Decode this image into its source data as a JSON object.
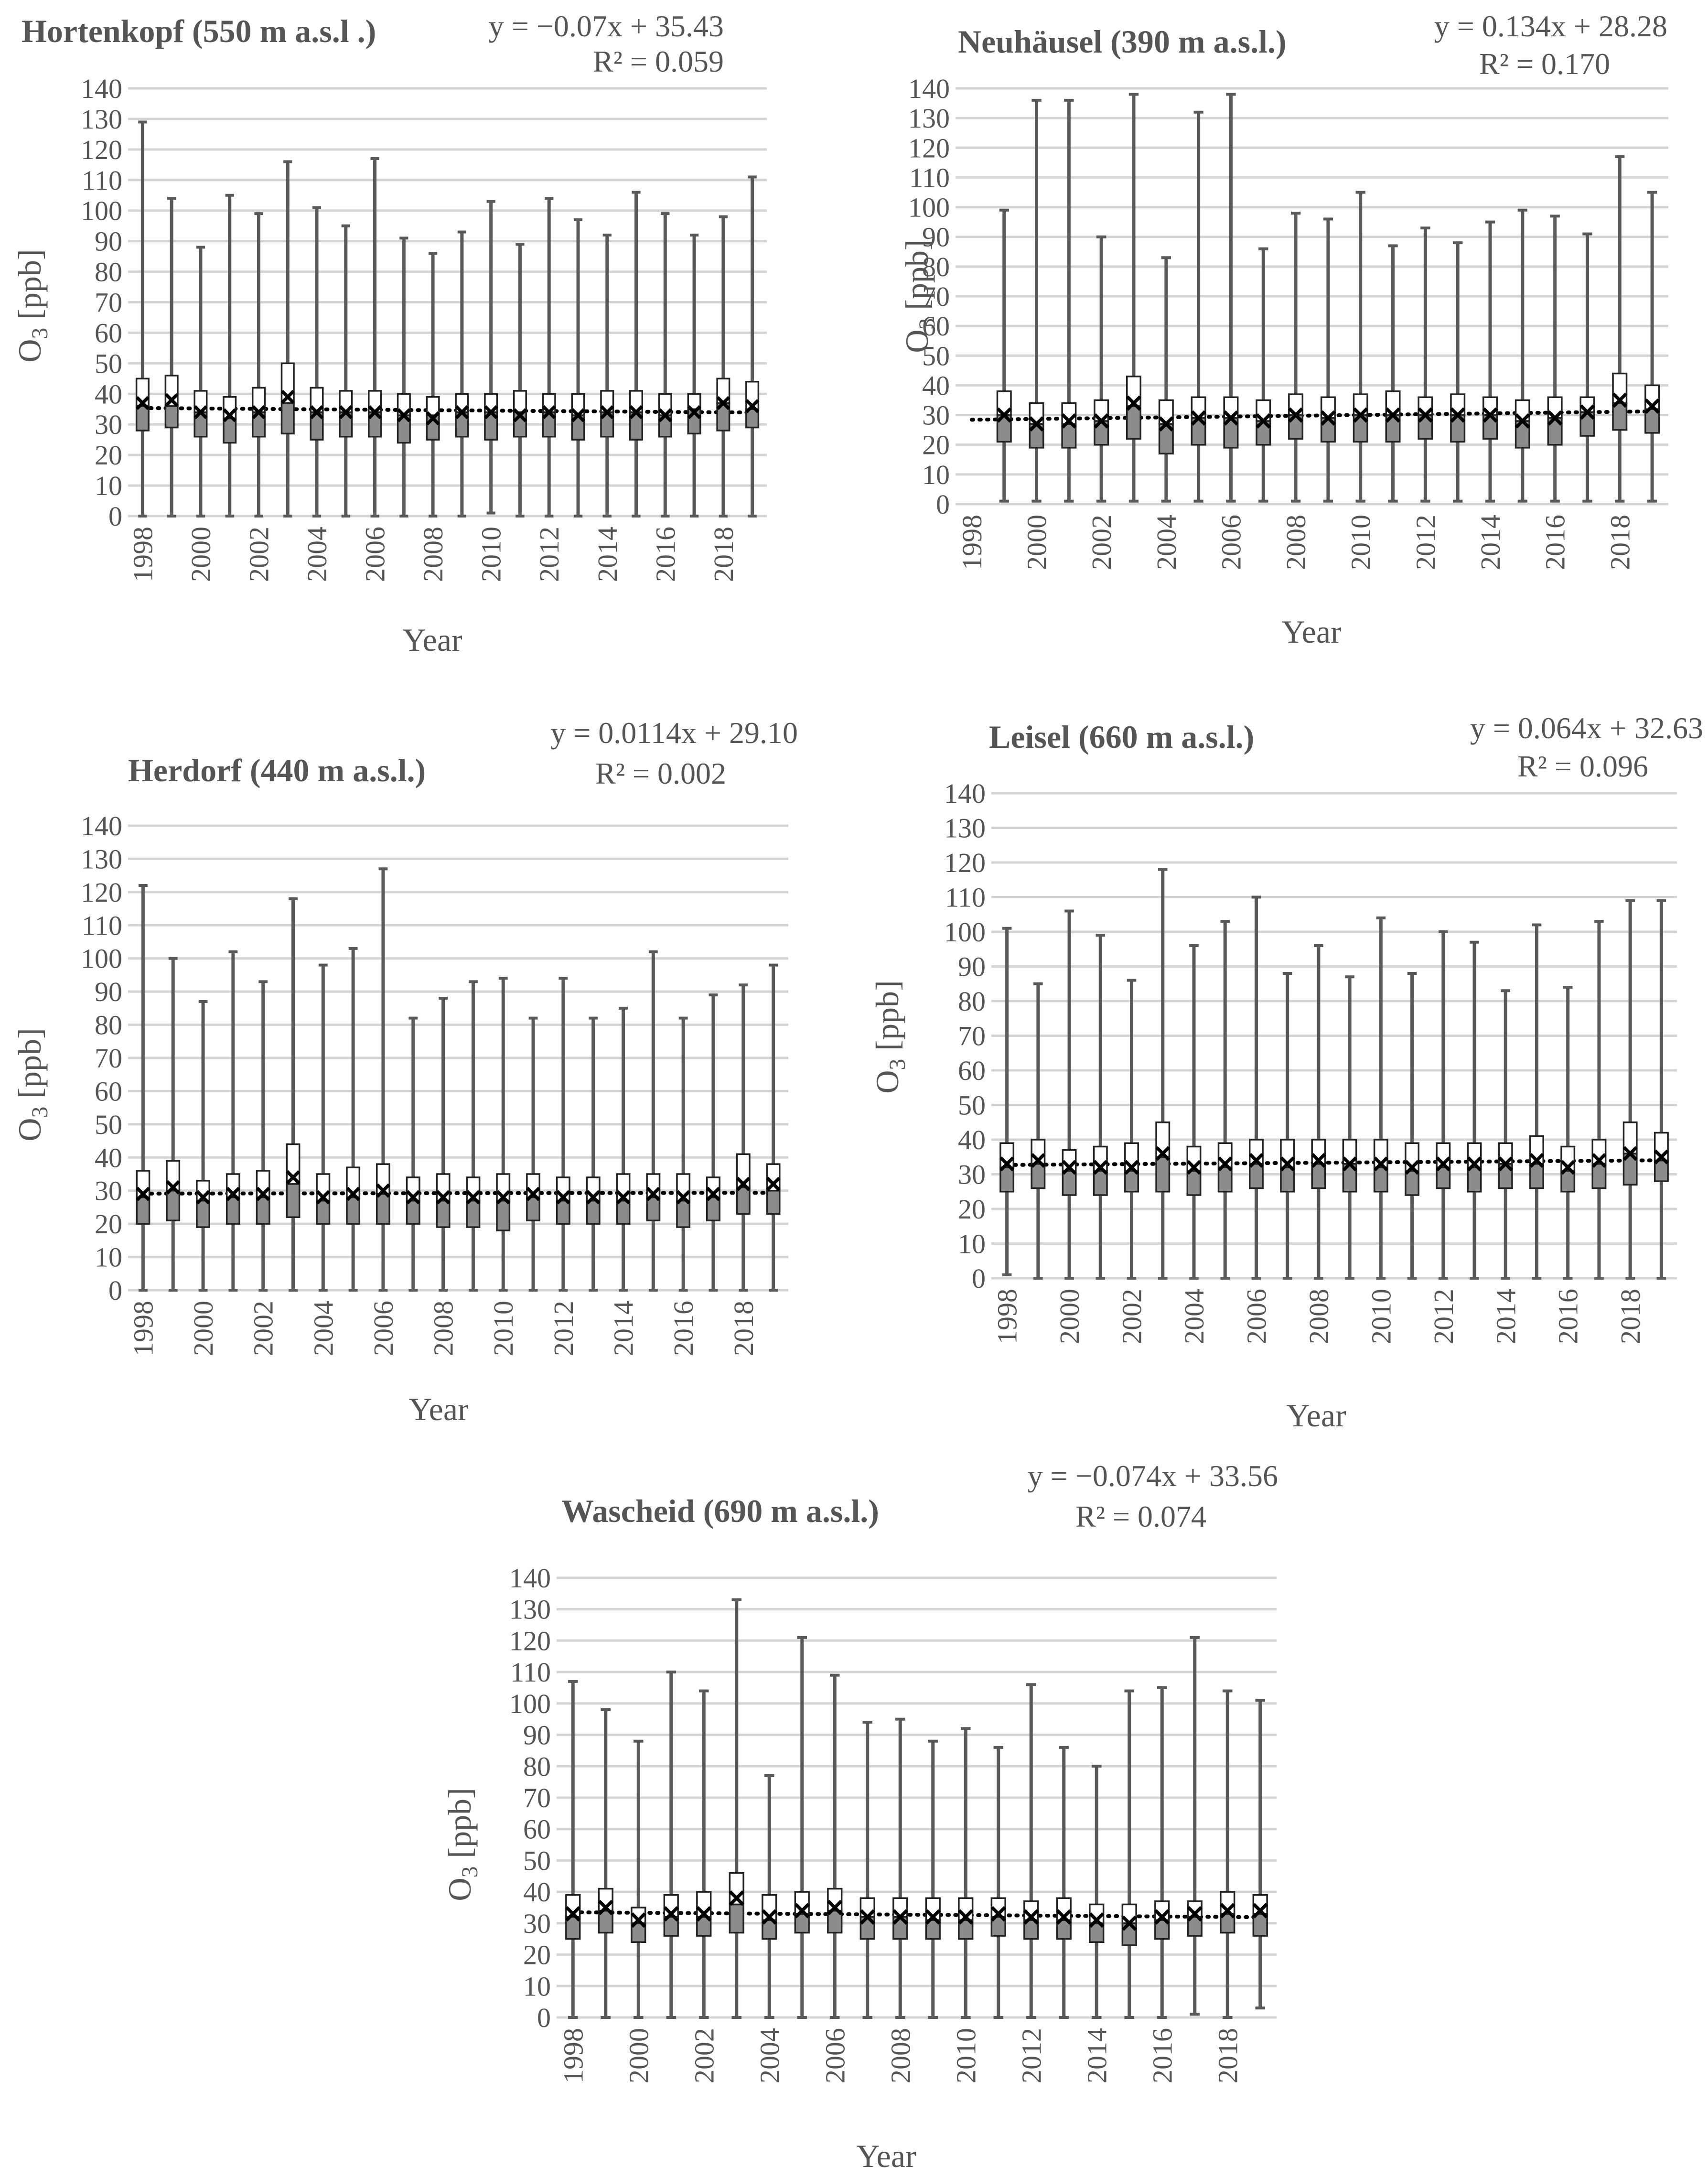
{
  "figure": {
    "y_label": "O",
    "y_label_sub": "3",
    "y_label_unit": " [ppb]",
    "x_label": "Year"
  },
  "chart_data": [
    {
      "type": "box",
      "title": "Hortenkopf (550 m a.s.l .)",
      "equation": "y = −0.07x + 35.43",
      "r2": "R² = 0.059",
      "trend": {
        "slope": -0.07,
        "intercept": 35.43
      },
      "xlabel": "Year",
      "ylabel": "O3 [ppb]",
      "ylim": [
        0,
        140
      ],
      "yticks": [
        "0",
        "10",
        "20",
        "30",
        "40",
        "50",
        "60",
        "70",
        "80",
        "90",
        "100",
        "110",
        "120",
        "130",
        "140"
      ],
      "xticks": [
        "1998",
        "2000",
        "2002",
        "2004",
        "2006",
        "2008",
        "2010",
        "2012",
        "2014",
        "2016",
        "2018"
      ],
      "years": [
        1998,
        1999,
        2000,
        2001,
        2002,
        2003,
        2004,
        2005,
        2006,
        2007,
        2008,
        2009,
        2010,
        2011,
        2012,
        2013,
        2014,
        2015,
        2016,
        2017,
        2018,
        2019
      ],
      "min": [
        0,
        0,
        0,
        0,
        0,
        0,
        0,
        0,
        0,
        0,
        0,
        0,
        1,
        0,
        0,
        0,
        0,
        0,
        0,
        0,
        0,
        0
      ],
      "q1": [
        28,
        29,
        26,
        24,
        26,
        27,
        25,
        26,
        26,
        24,
        25,
        26,
        25,
        26,
        26,
        25,
        26,
        25,
        26,
        27,
        28,
        29
      ],
      "median": [
        36,
        36,
        34,
        32,
        34,
        37,
        34,
        34,
        34,
        33,
        33,
        34,
        34,
        34,
        34,
        33,
        34,
        34,
        33,
        35,
        37,
        35
      ],
      "q3": [
        45,
        46,
        41,
        39,
        42,
        50,
        42,
        41,
        41,
        40,
        39,
        40,
        40,
        41,
        40,
        40,
        41,
        41,
        40,
        40,
        45,
        44
      ],
      "max": [
        129,
        104,
        88,
        105,
        99,
        116,
        101,
        95,
        117,
        91,
        86,
        93,
        103,
        89,
        104,
        97,
        92,
        106,
        99,
        92,
        98,
        111
      ],
      "mean": [
        37,
        38,
        34,
        33,
        34,
        39,
        34,
        34,
        34,
        33,
        32,
        34,
        34,
        33,
        34,
        33,
        34,
        34,
        33,
        34,
        37,
        36
      ]
    },
    {
      "type": "box",
      "title": "Neuhäusel (390 m a.s.l.)",
      "equation": "y = 0.134x + 28.28",
      "r2": "R² = 0.170",
      "trend": {
        "slope": 0.134,
        "intercept": 28.28
      },
      "xlabel": "Year",
      "ylabel": "O3 [ppb]",
      "ylim": [
        0,
        140
      ],
      "yticks": [
        "0",
        "10",
        "20",
        "30",
        "40",
        "50",
        "60",
        "70",
        "80",
        "90",
        "100",
        "110",
        "120",
        "130",
        "140"
      ],
      "xticks": [
        "1998",
        "2000",
        "2002",
        "2004",
        "2006",
        "2008",
        "2010",
        "2012",
        "2014",
        "2016",
        "2018"
      ],
      "years": [
        1998,
        1999,
        2000,
        2001,
        2002,
        2003,
        2004,
        2005,
        2006,
        2007,
        2008,
        2009,
        2010,
        2011,
        2012,
        2013,
        2014,
        2015,
        2016,
        2017,
        2018,
        2019
      ],
      "min": [
        null,
        1,
        1,
        1,
        1,
        1,
        1,
        1,
        1,
        1,
        1,
        1,
        1,
        1,
        1,
        1,
        1,
        1,
        1,
        1,
        1,
        1
      ],
      "q1": [
        null,
        21,
        19,
        19,
        20,
        22,
        17,
        20,
        19,
        20,
        22,
        21,
        21,
        21,
        22,
        21,
        22,
        19,
        20,
        23,
        25,
        24
      ],
      "median": [
        null,
        30,
        27,
        27,
        28,
        33,
        27,
        29,
        29,
        28,
        30,
        29,
        30,
        30,
        30,
        30,
        30,
        28,
        29,
        31,
        34,
        32
      ],
      "q3": [
        null,
        38,
        34,
        34,
        35,
        43,
        35,
        36,
        36,
        35,
        37,
        36,
        37,
        38,
        36,
        37,
        36,
        35,
        36,
        36,
        44,
        40
      ],
      "max": [
        null,
        99,
        136,
        136,
        90,
        138,
        83,
        132,
        138,
        86,
        98,
        96,
        105,
        87,
        93,
        88,
        95,
        99,
        97,
        91,
        117,
        105
      ],
      "mean": [
        null,
        30,
        27,
        28,
        28,
        34,
        27,
        29,
        29,
        28,
        30,
        29,
        30,
        30,
        30,
        30,
        30,
        28,
        29,
        31,
        35,
        33
      ]
    },
    {
      "type": "box",
      "title": "Herdorf (440 m a.s.l.)",
      "equation": "y = 0.0114x + 29.10",
      "r2": "R² = 0.002",
      "trend": {
        "slope": 0.0114,
        "intercept": 29.1
      },
      "xlabel": "Year",
      "ylabel": "O3 [ppb]",
      "ylim": [
        0,
        140
      ],
      "yticks": [
        "0",
        "10",
        "20",
        "30",
        "40",
        "50",
        "60",
        "70",
        "80",
        "90",
        "100",
        "110",
        "120",
        "130",
        "140"
      ],
      "xticks": [
        "1998",
        "2000",
        "2002",
        "2004",
        "2006",
        "2008",
        "2010",
        "2012",
        "2014",
        "2016",
        "2018"
      ],
      "years": [
        1998,
        1999,
        2000,
        2001,
        2002,
        2003,
        2004,
        2005,
        2006,
        2007,
        2008,
        2009,
        2010,
        2011,
        2012,
        2013,
        2014,
        2015,
        2016,
        2017,
        2018,
        2019
      ],
      "min": [
        0,
        0,
        0,
        0,
        0,
        0,
        0,
        0,
        0,
        0,
        0,
        0,
        0,
        0,
        0,
        0,
        0,
        0,
        0,
        0,
        0,
        0
      ],
      "q1": [
        20,
        21,
        19,
        20,
        20,
        22,
        20,
        20,
        20,
        20,
        19,
        19,
        18,
        21,
        20,
        20,
        20,
        21,
        19,
        21,
        23,
        23
      ],
      "median": [
        28,
        30,
        27,
        28,
        28,
        32,
        27,
        28,
        29,
        27,
        27,
        27,
        27,
        28,
        27,
        27,
        27,
        28,
        27,
        28,
        31,
        30
      ],
      "q3": [
        36,
        39,
        33,
        35,
        36,
        44,
        35,
        37,
        38,
        34,
        35,
        34,
        35,
        35,
        34,
        34,
        35,
        35,
        35,
        34,
        41,
        38
      ],
      "max": [
        122,
        100,
        87,
        102,
        93,
        118,
        98,
        103,
        127,
        82,
        88,
        93,
        94,
        82,
        94,
        82,
        85,
        102,
        82,
        89,
        92,
        98
      ],
      "mean": [
        29,
        31,
        28,
        29,
        29,
        34,
        28,
        29,
        30,
        28,
        28,
        28,
        28,
        29,
        28,
        28,
        28,
        29,
        28,
        29,
        32,
        32
      ]
    },
    {
      "type": "box",
      "title": "Leisel (660 m a.s.l.)",
      "equation": "y = 0.064x + 32.63",
      "r2": "R² = 0.096",
      "trend": {
        "slope": 0.064,
        "intercept": 32.63
      },
      "xlabel": "Year",
      "ylabel": "O3 [ppb]",
      "ylim": [
        0,
        140
      ],
      "yticks": [
        "0",
        "10",
        "20",
        "30",
        "40",
        "50",
        "60",
        "70",
        "80",
        "90",
        "100",
        "110",
        "120",
        "130",
        "140"
      ],
      "xticks": [
        "1998",
        "2000",
        "2002",
        "2004",
        "2006",
        "2008",
        "2010",
        "2012",
        "2014",
        "2016",
        "2018"
      ],
      "years": [
        1998,
        1999,
        2000,
        2001,
        2002,
        2003,
        2004,
        2005,
        2006,
        2007,
        2008,
        2009,
        2010,
        2011,
        2012,
        2013,
        2014,
        2015,
        2016,
        2017,
        2018,
        2019
      ],
      "min": [
        1,
        0,
        0,
        0,
        0,
        0,
        0,
        0,
        0,
        0,
        0,
        0,
        0,
        0,
        0,
        0,
        0,
        0,
        0,
        0,
        0,
        0
      ],
      "q1": [
        25,
        26,
        24,
        24,
        25,
        25,
        24,
        25,
        26,
        25,
        26,
        25,
        25,
        24,
        26,
        25,
        26,
        26,
        25,
        26,
        27,
        28
      ],
      "median": [
        32,
        33,
        31,
        31,
        31,
        35,
        31,
        32,
        33,
        32,
        33,
        33,
        32,
        31,
        32,
        32,
        33,
        33,
        31,
        33,
        36,
        34
      ],
      "q3": [
        39,
        40,
        37,
        38,
        39,
        45,
        38,
        39,
        40,
        40,
        40,
        40,
        40,
        39,
        39,
        39,
        39,
        41,
        38,
        40,
        45,
        42
      ],
      "max": [
        101,
        85,
        106,
        99,
        86,
        118,
        96,
        103,
        110,
        88,
        96,
        87,
        104,
        88,
        100,
        97,
        83,
        102,
        84,
        103,
        109,
        109
      ],
      "mean": [
        33,
        34,
        32,
        32,
        32,
        36,
        32,
        33,
        34,
        33,
        34,
        33,
        33,
        32,
        33,
        33,
        33,
        34,
        32,
        34,
        36,
        35
      ]
    },
    {
      "type": "box",
      "title": "Wascheid (690 m a.s.l.)",
      "equation": "y = −0.074x + 33.56",
      "r2": "R² = 0.074",
      "trend": {
        "slope": -0.074,
        "intercept": 33.56
      },
      "xlabel": "Year",
      "ylabel": "O3 [ppb]",
      "ylim": [
        0,
        140
      ],
      "yticks": [
        "0",
        "10",
        "20",
        "30",
        "40",
        "50",
        "60",
        "70",
        "80",
        "90",
        "100",
        "110",
        "120",
        "130",
        "140"
      ],
      "xticks": [
        "1998",
        "2000",
        "2002",
        "2004",
        "2006",
        "2008",
        "2010",
        "2012",
        "2014",
        "2016",
        "2018"
      ],
      "years": [
        1998,
        1999,
        2000,
        2001,
        2002,
        2003,
        2004,
        2005,
        2006,
        2007,
        2008,
        2009,
        2010,
        2011,
        2012,
        2013,
        2014,
        2015,
        2016,
        2017,
        2018,
        2019
      ],
      "min": [
        0,
        0,
        0,
        0,
        0,
        0,
        0,
        0,
        0,
        0,
        0,
        0,
        0,
        0,
        0,
        0,
        0,
        0,
        0,
        1,
        0,
        3
      ],
      "q1": [
        25,
        27,
        24,
        26,
        26,
        27,
        25,
        27,
        27,
        25,
        25,
        25,
        25,
        26,
        25,
        25,
        24,
        23,
        25,
        26,
        27,
        26
      ],
      "median": [
        32,
        34,
        30,
        32,
        32,
        36,
        31,
        33,
        34,
        32,
        32,
        31,
        31,
        32,
        31,
        31,
        30,
        30,
        31,
        32,
        33,
        33
      ],
      "q3": [
        39,
        41,
        35,
        39,
        40,
        46,
        39,
        40,
        41,
        38,
        38,
        38,
        38,
        38,
        37,
        38,
        36,
        36,
        37,
        37,
        40,
        39
      ],
      "max": [
        107,
        98,
        88,
        110,
        104,
        133,
        77,
        121,
        109,
        94,
        95,
        88,
        92,
        86,
        106,
        86,
        80,
        104,
        105,
        121,
        104,
        101
      ],
      "mean": [
        33,
        35,
        31,
        33,
        33,
        38,
        32,
        34,
        35,
        32,
        32,
        32,
        32,
        33,
        32,
        32,
        31,
        30,
        32,
        33,
        34,
        34
      ]
    }
  ]
}
